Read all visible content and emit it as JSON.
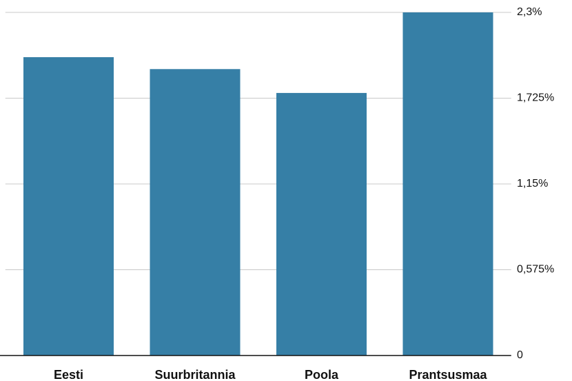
{
  "chart_data": {
    "type": "bar",
    "categories": [
      "Eesti",
      "Suurbritannia",
      "Poola",
      "Prantsusmaa"
    ],
    "values": [
      2.0,
      1.92,
      1.76,
      2.3
    ],
    "color": "#367fa6",
    "ylim": [
      0,
      2.3
    ],
    "yticks": [
      0,
      {
        "value": 0.575,
        "label": "0,575%"
      },
      {
        "value": 1.15,
        "label": "1,15%"
      },
      {
        "value": 1.725,
        "label": "1,725%"
      },
      {
        "value": 2.3,
        "label": "2,3%"
      }
    ],
    "grid": true
  }
}
